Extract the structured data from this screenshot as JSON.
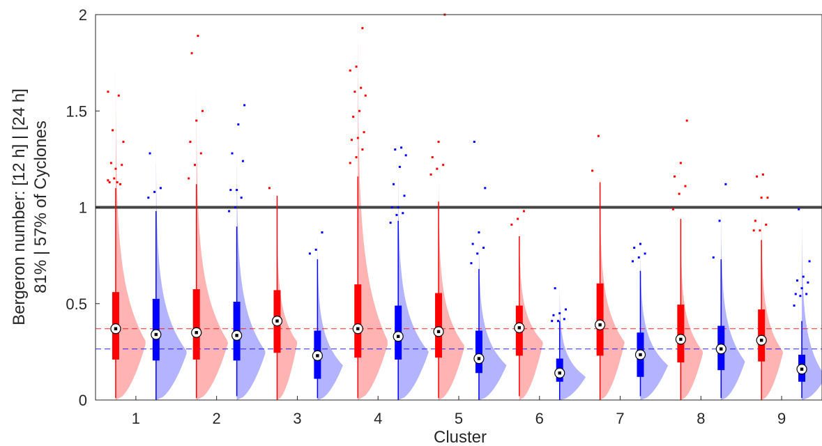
{
  "chart_data": {
    "type": "violin-box",
    "title": "",
    "xlabel": "Cluster",
    "ylabel_line1": "Bergeron number: [12 h] | [24 h]",
    "ylabel_line2": "81% | 57% of Cyclones",
    "categories": [
      "1",
      "2",
      "3",
      "4",
      "5",
      "6",
      "7",
      "8",
      "9"
    ],
    "ylim": [
      0,
      2
    ],
    "yticks": [
      "0",
      "0.5",
      "1",
      "1.5",
      "2"
    ],
    "reference_line": 1,
    "series": [
      {
        "key": "12h",
        "color": "#ff0000",
        "violin_color": "#ffb3b3",
        "mean_line": 0.37,
        "medians": [
          0.37,
          0.35,
          0.41,
          0.37,
          0.355,
          0.375,
          0.39,
          0.315,
          0.31
        ],
        "q1": [
          0.21,
          0.21,
          0.245,
          0.22,
          0.22,
          0.23,
          0.23,
          0.195,
          0.2
        ],
        "q3": [
          0.56,
          0.575,
          0.57,
          0.6,
          0.555,
          0.49,
          0.605,
          0.495,
          0.47
        ],
        "whisker_low": [
          0.01,
          0.01,
          0.0,
          0.01,
          0.01,
          0.02,
          0.0,
          0.0,
          0.0
        ],
        "whisker_high": [
          1.1,
          1.12,
          1.06,
          1.16,
          1.03,
          0.85,
          1.13,
          0.94,
          0.83
        ],
        "violin_top": [
          1.72,
          1.65,
          1.05,
          2.0,
          1.22,
          0.98,
          1.22,
          1.0,
          1.05
        ],
        "violin_peak": [
          0.3,
          0.3,
          0.3,
          0.3,
          0.28,
          0.3,
          0.3,
          0.25,
          0.25
        ],
        "violin_width": [
          0.42,
          0.44,
          0.28,
          0.42,
          0.36,
          0.33,
          0.34,
          0.31,
          0.3
        ],
        "outliers": [
          [
            1.14,
            1.15,
            1.12,
            1.13,
            1.2,
            1.22,
            1.23,
            1.13,
            1.34,
            1.4,
            1.58,
            1.6
          ],
          [
            1.15,
            1.22,
            1.28,
            1.34,
            1.45,
            1.5,
            1.8,
            1.89
          ],
          [
            1.1
          ],
          [
            1.23,
            1.26,
            1.3,
            1.35,
            1.36,
            1.39,
            1.47,
            1.5,
            1.58,
            1.6,
            1.62,
            1.71,
            1.73,
            1.93
          ],
          [
            1.17,
            1.2,
            1.22,
            1.26,
            1.34,
            2.0
          ],
          [
            0.91,
            0.94,
            0.98
          ],
          [
            1.19,
            1.37
          ],
          [
            0.99,
            1.07,
            1.11,
            1.16,
            1.23,
            1.45
          ],
          [
            0.88,
            0.88,
            0.91,
            0.93,
            1.05,
            1.05,
            1.16,
            1.17
          ]
        ]
      },
      {
        "key": "24h",
        "color": "#0000ff",
        "violin_color": "#b3b3ff",
        "mean_line": 0.265,
        "medians": [
          0.34,
          0.335,
          0.23,
          0.33,
          0.215,
          0.14,
          0.235,
          0.265,
          0.16
        ],
        "q1": [
          0.205,
          0.205,
          0.11,
          0.21,
          0.14,
          0.095,
          0.12,
          0.155,
          0.095
        ],
        "q3": [
          0.525,
          0.51,
          0.36,
          0.49,
          0.36,
          0.215,
          0.35,
          0.385,
          0.235
        ],
        "whisker_low": [
          0.0,
          0.02,
          0.01,
          0.0,
          0.0,
          0.0,
          0.02,
          0.01,
          0.01
        ],
        "whisker_high": [
          0.98,
          0.9,
          0.73,
          0.93,
          0.68,
          0.41,
          0.67,
          0.73,
          0.41
        ],
        "violin_top": [
          1.35,
          1.35,
          0.9,
          1.25,
          0.9,
          0.63,
          0.85,
          1.05,
          1.0
        ],
        "violin_peak": [
          0.25,
          0.25,
          0.18,
          0.25,
          0.18,
          0.12,
          0.18,
          0.2,
          0.12
        ],
        "violin_width": [
          0.43,
          0.4,
          0.35,
          0.42,
          0.38,
          0.36,
          0.38,
          0.33,
          0.33
        ],
        "outliers": [
          [
            1.05,
            1.08,
            1.1,
            1.28
          ],
          [
            0.98,
            1.0,
            1.05,
            1.09,
            1.09,
            1.24,
            1.28,
            1.43,
            1.53
          ],
          [
            0.76,
            0.78,
            0.87
          ],
          [
            0.92,
            0.96,
            0.97,
            1.0,
            1.0,
            1.06,
            1.12,
            1.21,
            1.27,
            1.3,
            1.31
          ],
          [
            0.71,
            0.76,
            0.79,
            0.81,
            0.87,
            1.1,
            1.34
          ],
          [
            0.41,
            0.41,
            0.42,
            0.44,
            0.45,
            0.47,
            0.58
          ],
          [
            0.72,
            0.74,
            0.76,
            0.79,
            0.81
          ],
          [
            0.74,
            0.93,
            1.12
          ],
          [
            0.49,
            0.54,
            0.55,
            0.55,
            0.58,
            0.61,
            0.62,
            0.64,
            0.72,
            0.99
          ]
        ]
      }
    ],
    "legend": "none",
    "grid": false
  }
}
